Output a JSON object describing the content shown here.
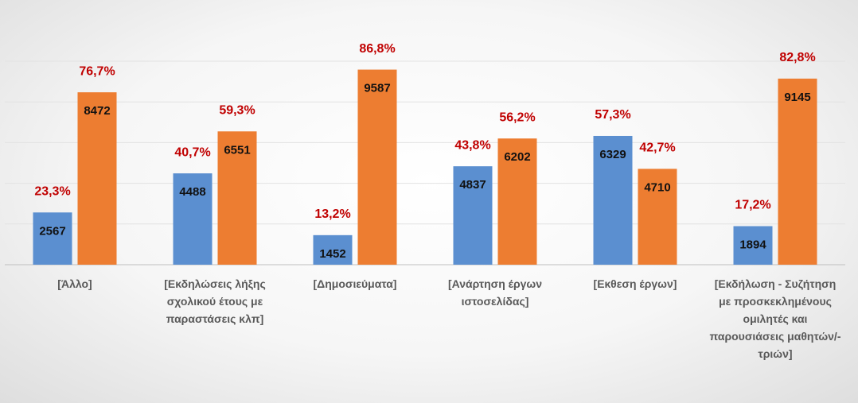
{
  "chart_data": {
    "type": "bar",
    "categories": [
      "[Άλλο]",
      "[Εκδηλώσεις λήξης σχολικού έτους με παραστάσεις κλπ]",
      "[Δημοσιεύματα]",
      "[Ανάρτηση έργων ιστοσελίδας]",
      "[Εκθεση έργων]",
      "[Εκδήλωση - Συζήτηση με προσκεκλημένους ομιλητές και παρουσιάσεις μαθητών/-τριών]"
    ],
    "series": [
      {
        "color": "#5b8fd0",
        "values": [
          2567,
          4488,
          1452,
          4837,
          6329,
          1894
        ],
        "percentages": [
          23.3,
          40.7,
          13.2,
          43.8,
          57.3,
          17.2
        ],
        "percentage_labels": [
          "23,3%",
          "40,7%",
          "13,2%",
          "43,8%",
          "57,3%",
          "17,2%"
        ]
      },
      {
        "color": "#ed7d31",
        "values": [
          8472,
          6551,
          9587,
          6202,
          4710,
          9145
        ],
        "percentages": [
          76.7,
          59.3,
          86.8,
          56.2,
          42.7,
          82.8
        ],
        "percentage_labels": [
          "76,7%",
          "59,3%",
          "86,8%",
          "56,2%",
          "42,7%",
          "82,8%"
        ]
      }
    ],
    "ylim": [
      0,
      10000
    ],
    "yticks": [
      0,
      2000,
      4000,
      6000,
      8000,
      10000
    ],
    "grid": true
  }
}
